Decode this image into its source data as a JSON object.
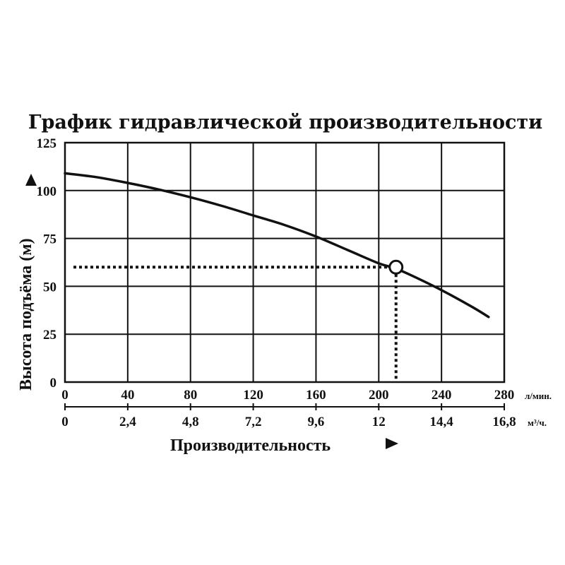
{
  "chart_data": {
    "type": "line",
    "title": "График гидравлической производительности",
    "ylabel": "Высота подъёма (м)",
    "xlabel": "Производительность",
    "ylim": [
      0,
      125
    ],
    "xlim": [
      0,
      280
    ],
    "grid": true,
    "y_ticks": [
      "0",
      "25",
      "50",
      "75",
      "100",
      "125"
    ],
    "x_ticks_primary": [
      "0",
      "40",
      "80",
      "120",
      "160",
      "200",
      "240",
      "280"
    ],
    "x_unit_primary": "л/мин.",
    "x_ticks_secondary": [
      "0",
      "2,4",
      "4,8",
      "7,2",
      "9,6",
      "12",
      "14,4",
      "16,8"
    ],
    "x_unit_secondary": "м³/ч.",
    "series": [
      {
        "x": [
          0,
          20,
          40,
          60,
          80,
          100,
          120,
          140,
          160,
          180,
          200,
          210,
          220,
          240,
          260,
          270
        ],
        "values": [
          109,
          107,
          104,
          100.5,
          96.5,
          92,
          87,
          82,
          76,
          69,
          62,
          59.5,
          56,
          48,
          39,
          34
        ]
      }
    ],
    "operating_point": {
      "x": 211,
      "y": 60
    }
  }
}
